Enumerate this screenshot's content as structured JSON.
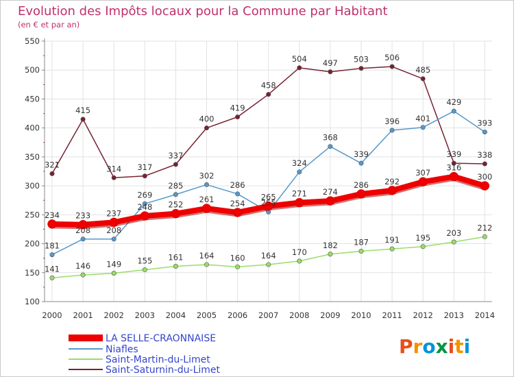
{
  "chart_data": {
    "type": "line",
    "title": "Evolution des Impôts locaux pour la Commune par Habitant",
    "subtitle": "(en € et par an)",
    "xlabel": "",
    "ylabel": "",
    "ylim": [
      100,
      550
    ],
    "yticks": [
      100,
      150,
      200,
      250,
      300,
      350,
      400,
      450,
      500,
      550
    ],
    "categories": [
      "2000",
      "2001",
      "2002",
      "2003",
      "2004",
      "2005",
      "2006",
      "2007",
      "2008",
      "2009",
      "2010",
      "2011",
      "2012",
      "2013",
      "2014"
    ],
    "grid": true,
    "legend_position": "bottom-left",
    "series": [
      {
        "name": "LA SELLE-CRAONNAISE",
        "color": "#ee0000",
        "values": [
          234,
          233,
          237,
          248,
          252,
          261,
          254,
          265,
          271,
          274,
          286,
          292,
          307,
          316,
          300
        ]
      },
      {
        "name": "Niafles",
        "color": "#5599cc",
        "values": [
          181,
          208,
          208,
          269,
          285,
          302,
          286,
          255,
          324,
          368,
          339,
          396,
          401,
          429,
          393
        ]
      },
      {
        "name": "Saint-Martin-du-Limet",
        "color": "#99dd66",
        "values": [
          141,
          146,
          149,
          155,
          161,
          164,
          160,
          164,
          170,
          182,
          187,
          191,
          195,
          203,
          212
        ]
      },
      {
        "name": "Saint-Saturnin-du-Limet",
        "color": "#772233",
        "values": [
          321,
          415,
          314,
          317,
          337,
          400,
          419,
          458,
          504,
          497,
          503,
          506,
          485,
          339,
          338
        ]
      }
    ]
  },
  "logo": {
    "text": "Proxiti",
    "letters": [
      "P",
      "r",
      "o",
      "x",
      "i",
      "t",
      "i"
    ],
    "colors": [
      "#e94e1b",
      "#f39200",
      "#0095da",
      "#009640",
      "#e94e1b",
      "#f39200",
      "#0095da"
    ]
  }
}
